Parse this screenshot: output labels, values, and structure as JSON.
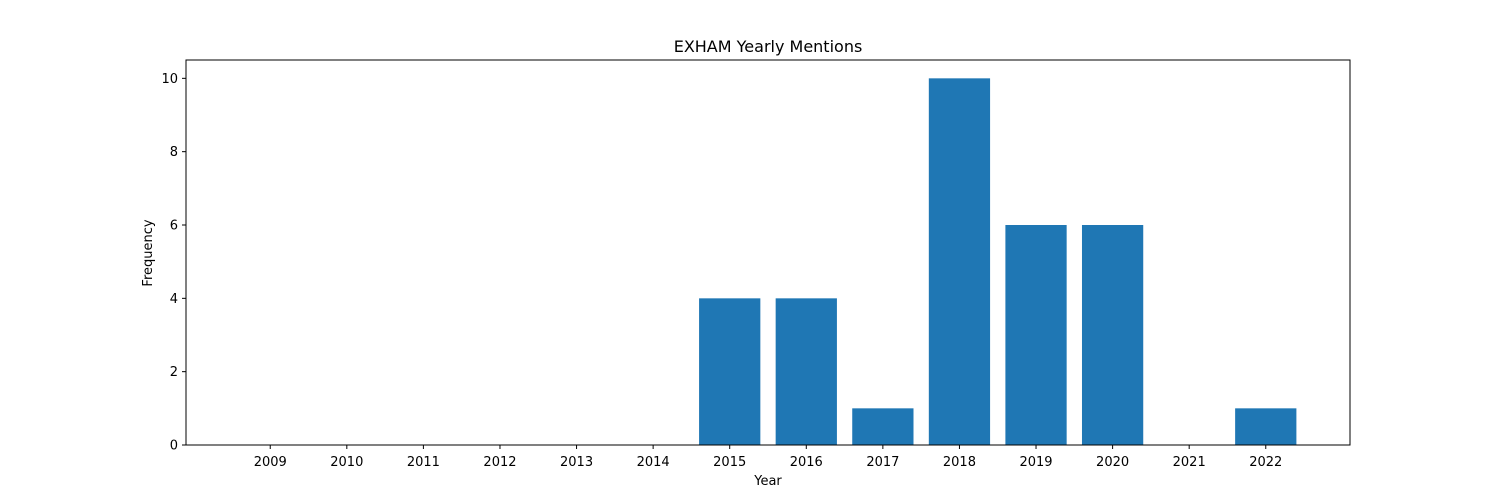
{
  "chart_data": {
    "type": "bar",
    "title": "EXHAM Yearly Mentions",
    "xlabel": "Year",
    "ylabel": "Frequency",
    "categories": [
      "2009",
      "2010",
      "2011",
      "2012",
      "2013",
      "2014",
      "2015",
      "2016",
      "2017",
      "2018",
      "2019",
      "2020",
      "2021",
      "2022"
    ],
    "values": [
      0,
      0,
      0,
      0,
      0,
      0,
      4,
      4,
      1,
      10,
      6,
      6,
      0,
      1
    ],
    "ylim": [
      0,
      10.5
    ],
    "yticks": [
      0,
      2,
      4,
      6,
      8,
      10
    ],
    "xlim": [
      2007.9,
      2023.1
    ],
    "bar_color": "#1f77b4",
    "grid": false,
    "legend": "none"
  }
}
